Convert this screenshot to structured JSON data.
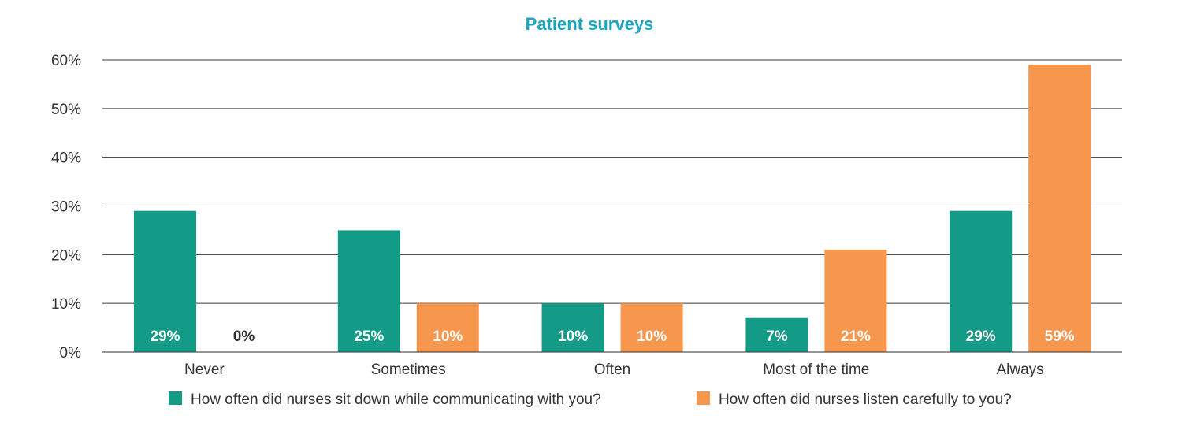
{
  "chart_data": {
    "type": "bar",
    "title": "Patient surveys",
    "categories": [
      "Never",
      "Sometimes",
      "Often",
      "Most of the time",
      "Always"
    ],
    "series": [
      {
        "name": "How often did nurses sit down while communicating with you?",
        "values": [
          29,
          25,
          10,
          7,
          29
        ],
        "labels": [
          "29%",
          "25%",
          "10%",
          "7%",
          "29%"
        ],
        "color": "#139b87"
      },
      {
        "name": "How often did nurses listen carefully to you?",
        "values": [
          0,
          10,
          10,
          21,
          59
        ],
        "labels": [
          "0%",
          "10%",
          "10%",
          "21%",
          "59%"
        ],
        "color": "#f7964d"
      }
    ],
    "yticks": [
      "0%",
      "10%",
      "20%",
      "30%",
      "40%",
      "50%",
      "60%"
    ],
    "ylim": [
      0,
      60
    ],
    "grid": true,
    "legend_position": "bottom",
    "title_color": "#1aa6c2",
    "bar_label_color": "#ffffff",
    "zero_label_color": "#333333"
  }
}
